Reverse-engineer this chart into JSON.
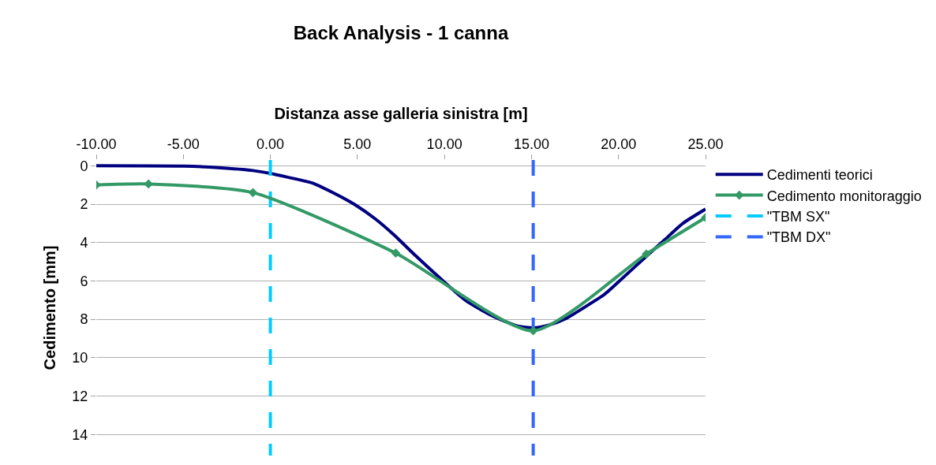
{
  "chart_data": {
    "type": "line",
    "title": "Back Analysis - 1 canna",
    "xlabel": "Distanza asse galleria sinistra [m]",
    "ylabel": "Cedimento [mm]",
    "series": [
      {
        "name": "Cedimenti teorici",
        "color": "#000080",
        "marker": "none",
        "x": [
          -10,
          -5,
          -3,
          -1,
          0,
          1,
          2.4,
          3.8,
          4.9,
          6,
          7.1,
          8.3,
          9.8,
          11.2,
          12.7,
          14.2,
          15.1,
          16,
          17,
          18,
          19.2,
          20.3,
          21.5,
          22.6,
          23.7,
          25
        ],
        "values": [
          0,
          0.02,
          0.1,
          0.25,
          0.4,
          0.6,
          0.9,
          1.5,
          2.05,
          2.75,
          3.6,
          4.65,
          5.9,
          7.0,
          7.8,
          8.35,
          8.45,
          8.3,
          7.95,
          7.4,
          6.7,
          5.8,
          4.8,
          3.9,
          3.0,
          2.26
        ]
      },
      {
        "name": "Cedimento monitoraggio",
        "color": "#339966",
        "marker": "diamond",
        "x": [
          -10,
          -7,
          -1,
          7.2,
          15.1,
          21.6,
          25
        ],
        "values": [
          1.0,
          0.95,
          1.4,
          4.55,
          8.6,
          4.6,
          2.7
        ]
      },
      {
        "name": "\"TBM SX\"",
        "color": "#00ccff",
        "marker": "none",
        "line_style": "dashed",
        "x": [
          0,
          0
        ],
        "values": [
          -0.3,
          15.1
        ]
      },
      {
        "name": "\"TBM DX\"",
        "color": "#3366ff",
        "marker": "none",
        "line_style": "dashed",
        "x": [
          15.1,
          15.1
        ],
        "values": [
          -0.3,
          15.1
        ]
      }
    ],
    "xlim": [
      -10,
      25
    ],
    "xticks": [
      {
        "value": -10,
        "label": "-10.00"
      },
      {
        "value": -5,
        "label": "-5.00"
      },
      {
        "value": 0,
        "label": "0.00"
      },
      {
        "value": 5,
        "label": "5.00"
      },
      {
        "value": 10,
        "label": "10.00"
      },
      {
        "value": 15,
        "label": "15.00"
      },
      {
        "value": 20,
        "label": "20.00"
      },
      {
        "value": 25,
        "label": "25.00"
      }
    ],
    "ylim": [
      15.1,
      -0.3
    ],
    "yticks": [
      0,
      2,
      4,
      6,
      8,
      10,
      12,
      14
    ],
    "grid": "y",
    "legend": "right",
    "line_style": "solid"
  }
}
